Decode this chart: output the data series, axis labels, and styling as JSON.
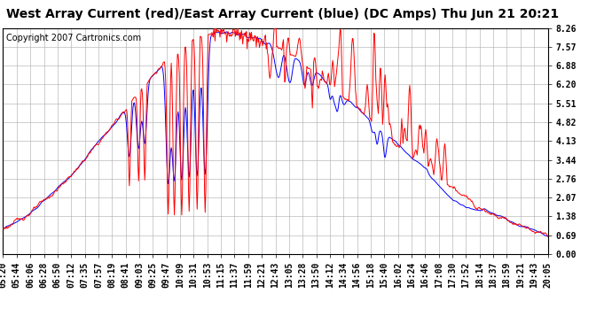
{
  "title": "West Array Current (red)/East Array Current (blue) (DC Amps) Thu Jun 21 20:21",
  "copyright": "Copyright 2007 Cartronics.com",
  "yticks": [
    0.0,
    0.69,
    1.38,
    2.07,
    2.76,
    3.44,
    4.13,
    4.82,
    5.51,
    6.2,
    6.88,
    7.57,
    8.26
  ],
  "ylim": [
    0.0,
    8.26
  ],
  "background_color": "#ffffff",
  "plot_bg_color": "#ffffff",
  "grid_color": "#aaaaaa",
  "red_color": "#ff0000",
  "blue_color": "#0000ff",
  "title_fontsize": 10,
  "copyright_fontsize": 7,
  "tick_fontsize": 7,
  "num_points": 885,
  "tick_labels": [
    "05:20",
    "05:44",
    "06:06",
    "06:28",
    "06:50",
    "07:12",
    "07:35",
    "07:57",
    "08:19",
    "08:41",
    "09:03",
    "09:25",
    "09:47",
    "10:09",
    "10:31",
    "10:53",
    "11:15",
    "11:37",
    "11:59",
    "12:21",
    "12:43",
    "13:05",
    "13:28",
    "13:50",
    "14:12",
    "14:34",
    "14:56",
    "15:18",
    "15:40",
    "16:02",
    "16:24",
    "16:46",
    "17:08",
    "17:30",
    "17:52",
    "18:14",
    "18:37",
    "18:59",
    "19:21",
    "19:43",
    "20:05"
  ]
}
